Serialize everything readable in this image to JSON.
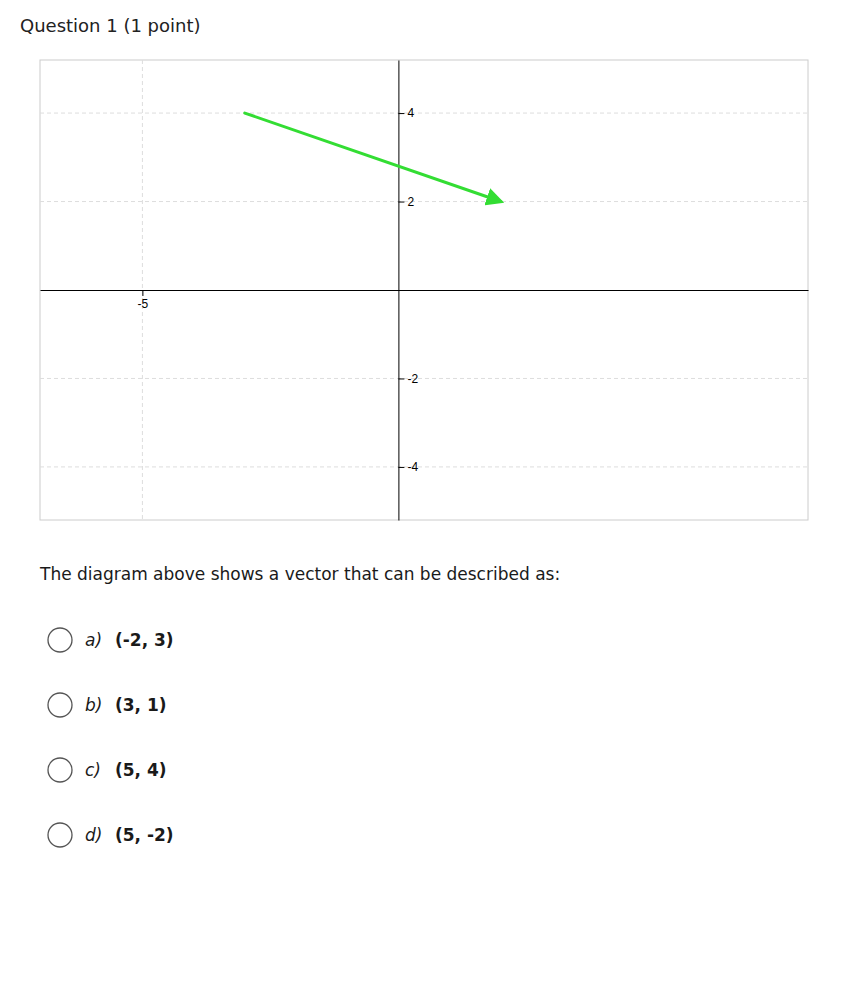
{
  "chart_data": {
    "type": "vector",
    "title": "Question 1 (1 point)",
    "x": [
      -3,
      2
    ],
    "values": [
      4,
      2
    ],
    "color": "#33dd33",
    "xlim": [
      -7,
      8
    ],
    "ylim": [
      -5.2,
      5.2
    ],
    "xticks": [
      -5
    ],
    "yticks": [
      -4,
      -2,
      2,
      4
    ],
    "grid": true,
    "annotations": [
      {
        "text": "The diagram above shows a vector that can be described as:"
      },
      {
        "label": "a)",
        "text": "(-2, 3)"
      },
      {
        "label": "b)",
        "text": "(3, 1)"
      },
      {
        "label": "c)",
        "text": "(5, 4)"
      },
      {
        "label": "d)",
        "text": "(5, -2)"
      }
    ]
  }
}
